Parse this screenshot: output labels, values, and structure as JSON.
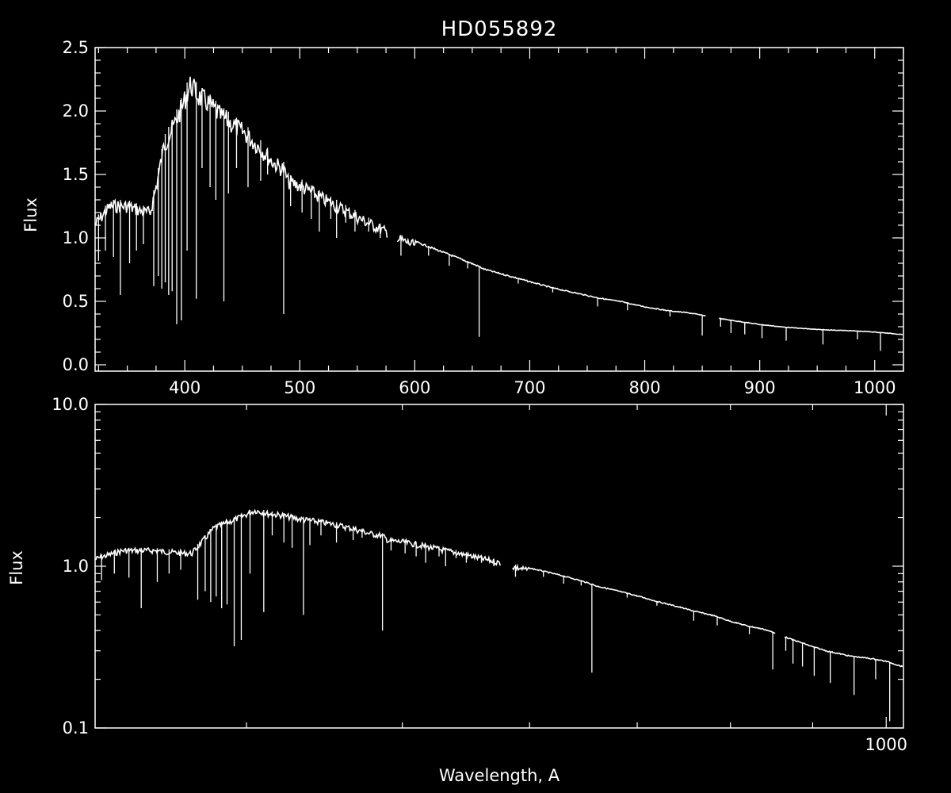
{
  "chart_data": [
    {
      "type": "line",
      "title": "HD055892",
      "xlabel": "",
      "ylabel": "Flux",
      "x_scale": "linear",
      "y_scale": "linear",
      "xlim": [
        322,
        1025
      ],
      "ylim": [
        -0.05,
        2.5
      ],
      "xticks": [
        400,
        500,
        600,
        700,
        800,
        900,
        1000
      ],
      "xtick_labels": [
        "400",
        "500",
        "600",
        "700",
        "800",
        "900",
        "1000"
      ],
      "yticks": [
        0.0,
        0.5,
        1.0,
        1.5,
        2.0,
        2.5
      ],
      "ytick_labels": [
        "0.0",
        "0.5",
        "1.0",
        "1.5",
        "2.0",
        "2.5"
      ],
      "grid": false,
      "color": "#ffffff",
      "series": [
        {
          "x": [
            322,
            335,
            350,
            365,
            370,
            376,
            382,
            390,
            397,
            405,
            412,
            420,
            430,
            440,
            452,
            465,
            478,
            486,
            490,
            500,
            520,
            540,
            560,
            575,
            578,
            586,
            600,
            620,
            640,
            656,
            660,
            680,
            700,
            720,
            740,
            760,
            780,
            800,
            820,
            840,
            852,
            870,
            900,
            920,
            950,
            980,
            1000,
            1025
          ],
          "y": [
            1.15,
            1.3,
            1.3,
            1.25,
            1.25,
            1.5,
            1.8,
            1.95,
            2.1,
            2.3,
            2.2,
            2.15,
            2.05,
            1.98,
            1.9,
            1.78,
            1.65,
            1.6,
            1.5,
            1.47,
            1.36,
            1.26,
            1.16,
            1.09,
            1.08,
            1.03,
            0.98,
            0.91,
            0.84,
            0.78,
            0.76,
            0.71,
            0.66,
            0.61,
            0.57,
            0.53,
            0.5,
            0.46,
            0.43,
            0.41,
            0.39,
            0.36,
            0.32,
            0.3,
            0.28,
            0.27,
            0.26,
            0.24
          ]
        }
      ],
      "absorption_lines": [
        {
          "x": 325,
          "depth_to": 0.82
        },
        {
          "x": 331,
          "depth_to": 0.9
        },
        {
          "x": 338,
          "depth_to": 0.85
        },
        {
          "x": 344,
          "depth_to": 0.55
        },
        {
          "x": 352,
          "depth_to": 0.8
        },
        {
          "x": 358,
          "depth_to": 0.9
        },
        {
          "x": 364,
          "depth_to": 0.95
        },
        {
          "x": 373,
          "depth_to": 0.62
        },
        {
          "x": 377,
          "depth_to": 0.7
        },
        {
          "x": 380,
          "depth_to": 0.6
        },
        {
          "x": 383,
          "depth_to": 0.65
        },
        {
          "x": 386,
          "depth_to": 0.55
        },
        {
          "x": 389,
          "depth_to": 0.58
        },
        {
          "x": 393,
          "depth_to": 0.32
        },
        {
          "x": 397,
          "depth_to": 0.35
        },
        {
          "x": 402,
          "depth_to": 0.9
        },
        {
          "x": 410,
          "depth_to": 0.52
        },
        {
          "x": 415,
          "depth_to": 1.55
        },
        {
          "x": 422,
          "depth_to": 1.4
        },
        {
          "x": 427,
          "depth_to": 1.3
        },
        {
          "x": 434,
          "depth_to": 0.5
        },
        {
          "x": 438,
          "depth_to": 1.35
        },
        {
          "x": 445,
          "depth_to": 1.55
        },
        {
          "x": 455,
          "depth_to": 1.4
        },
        {
          "x": 466,
          "depth_to": 1.45
        },
        {
          "x": 472,
          "depth_to": 1.5
        },
        {
          "x": 486,
          "depth_to": 0.4
        },
        {
          "x": 492,
          "depth_to": 1.25
        },
        {
          "x": 502,
          "depth_to": 1.2
        },
        {
          "x": 510,
          "depth_to": 1.15
        },
        {
          "x": 517,
          "depth_to": 1.05
        },
        {
          "x": 527,
          "depth_to": 1.15
        },
        {
          "x": 532,
          "depth_to": 1.0
        },
        {
          "x": 540,
          "depth_to": 1.12
        },
        {
          "x": 548,
          "depth_to": 1.05
        },
        {
          "x": 560,
          "depth_to": 1.05
        },
        {
          "x": 570,
          "depth_to": 1.0
        },
        {
          "x": 588,
          "depth_to": 0.86
        },
        {
          "x": 612,
          "depth_to": 0.86
        },
        {
          "x": 630,
          "depth_to": 0.78
        },
        {
          "x": 646,
          "depth_to": 0.76
        },
        {
          "x": 656,
          "depth_to": 0.22
        },
        {
          "x": 690,
          "depth_to": 0.64
        },
        {
          "x": 720,
          "depth_to": 0.57
        },
        {
          "x": 759,
          "depth_to": 0.46
        },
        {
          "x": 785,
          "depth_to": 0.43
        },
        {
          "x": 822,
          "depth_to": 0.38
        },
        {
          "x": 850,
          "depth_to": 0.23
        },
        {
          "x": 866,
          "depth_to": 0.3
        },
        {
          "x": 875,
          "depth_to": 0.25
        },
        {
          "x": 887,
          "depth_to": 0.24
        },
        {
          "x": 902,
          "depth_to": 0.21
        },
        {
          "x": 923,
          "depth_to": 0.19
        },
        {
          "x": 955,
          "depth_to": 0.16
        },
        {
          "x": 985,
          "depth_to": 0.2
        },
        {
          "x": 1005,
          "depth_to": 0.11
        }
      ]
    },
    {
      "type": "line",
      "title": "",
      "xlabel": "Wavelength, A",
      "ylabel": "Flux",
      "x_scale": "log",
      "y_scale": "log",
      "xlim": [
        322,
        1025
      ],
      "ylim": [
        0.1,
        10.0
      ],
      "xticks": [
        1000
      ],
      "xtick_labels": [
        "1000"
      ],
      "yticks": [
        0.1,
        1.0,
        10.0
      ],
      "ytick_labels": [
        "0.1",
        "1.0",
        "10.0"
      ],
      "grid": false,
      "color": "#ffffff",
      "same_data_as": "upper panel"
    }
  ]
}
